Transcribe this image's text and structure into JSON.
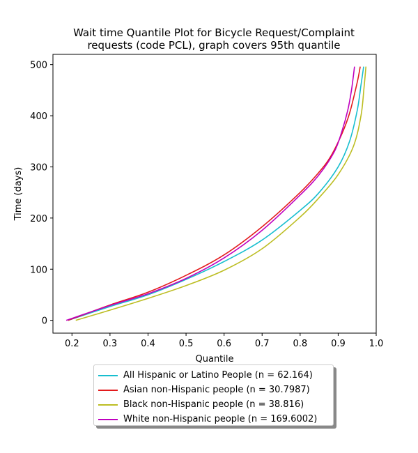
{
  "chart_data": {
    "type": "line",
    "title": "Wait time Quantile Plot for Bicycle Request/Complaint\nrequests (code PCL), graph covers 95th quantile",
    "xlabel": "Quantile",
    "ylabel": "Time (days)",
    "xlim": [
      0.15,
      1.0
    ],
    "ylim": [
      -25,
      520
    ],
    "xticks": [
      0.2,
      0.3,
      0.4,
      0.5,
      0.6,
      0.7,
      0.8,
      0.9,
      1.0
    ],
    "xtick_labels": [
      "0.2",
      "0.3",
      "0.4",
      "0.5",
      "0.6",
      "0.7",
      "0.8",
      "0.9",
      "1.0"
    ],
    "yticks": [
      0,
      100,
      200,
      300,
      400,
      500
    ],
    "ytick_labels": [
      "0",
      "100",
      "200",
      "300",
      "400",
      "500"
    ],
    "grid": false,
    "legend_position": "below",
    "series": [
      {
        "name": "All Hispanic or Latino People (n = 62.164)",
        "color": "#17becf",
        "x": [
          0.19,
          0.3,
          0.4,
          0.5,
          0.6,
          0.7,
          0.8,
          0.85,
          0.9,
          0.93,
          0.95,
          0.96,
          0.967
        ],
        "y": [
          0,
          27,
          50,
          80,
          115,
          157,
          215,
          250,
          300,
          350,
          410,
          460,
          496
        ]
      },
      {
        "name": "Asian non-Hispanic people (n = 30.7987)",
        "color": "#e31a1c",
        "x": [
          0.19,
          0.3,
          0.4,
          0.5,
          0.6,
          0.7,
          0.8,
          0.85,
          0.88,
          0.91,
          0.93,
          0.95,
          0.958
        ],
        "y": [
          0,
          30,
          55,
          88,
          128,
          183,
          250,
          290,
          320,
          365,
          405,
          465,
          496
        ]
      },
      {
        "name": "Black non-Hispanic people (n = 38.816)",
        "color": "#bcbd22",
        "x": [
          0.21,
          0.3,
          0.4,
          0.5,
          0.6,
          0.7,
          0.8,
          0.85,
          0.9,
          0.94,
          0.96,
          0.968,
          0.973
        ],
        "y": [
          0,
          20,
          43,
          68,
          98,
          140,
          202,
          240,
          285,
          340,
          400,
          455,
          496
        ]
      },
      {
        "name": "White non-Hispanic people (n = 169.6002)",
        "color": "#bf00bf",
        "x": [
          0.185,
          0.3,
          0.4,
          0.5,
          0.6,
          0.7,
          0.8,
          0.85,
          0.89,
          0.91,
          0.925,
          0.935,
          0.943
        ],
        "y": [
          0,
          29,
          52,
          82,
          122,
          176,
          245,
          285,
          330,
          370,
          410,
          450,
          496
        ]
      }
    ]
  }
}
